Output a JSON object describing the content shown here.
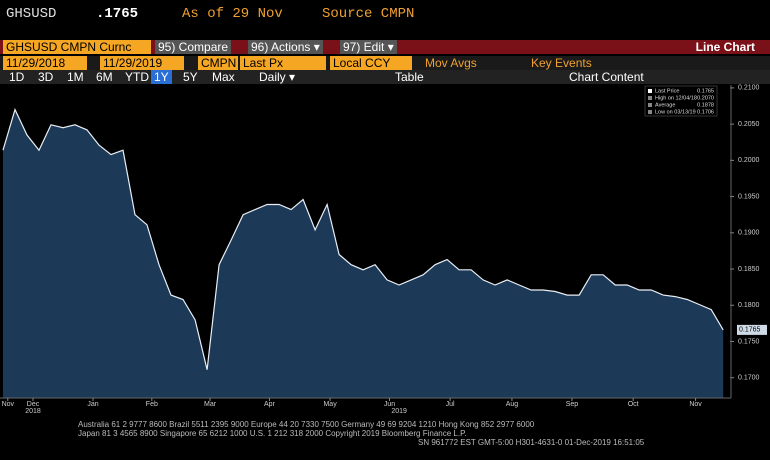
{
  "header": {
    "ticker": "GHSUSD",
    "price": ".1765",
    "as_of": "As of 29 Nov",
    "source": "Source CMPN"
  },
  "toolbar": {
    "security": "GHSUSD CMPN Curnc",
    "compare": "95) Compare",
    "actions": "96) Actions ▾",
    "edit": "97) Edit ▾",
    "view": "Line Chart",
    "start_date": "11/29/2018",
    "end_date": "11/29/2019",
    "pricing_source": "CMPN",
    "field": "Last Px",
    "currency": "Local CCY",
    "mov_avgs": "Mov Avgs",
    "key_events": "Key Events",
    "ranges": [
      "1D",
      "3D",
      "1M",
      "6M",
      "YTD",
      "1Y",
      "5Y",
      "Max"
    ],
    "active_range": 5,
    "frequency": "Daily ▾",
    "table": "Table",
    "chart_content": "Chart Content"
  },
  "chart": {
    "type": "area",
    "color": "#e8eef5",
    "fill": "#1c3957",
    "values": [
      0.2014,
      0.207,
      0.2035,
      0.2014,
      0.2049,
      0.2045,
      0.2049,
      0.2042,
      0.2021,
      0.2008,
      0.2014,
      0.1925,
      0.1911,
      0.1856,
      0.1814,
      0.1808,
      0.178,
      0.1711,
      0.1856,
      0.189,
      0.1925,
      0.1932,
      0.1939,
      0.1939,
      0.1932,
      0.1946,
      0.1904,
      0.1939,
      0.187,
      0.1856,
      0.1849,
      0.1856,
      0.1835,
      0.1828,
      0.1835,
      0.1842,
      0.1856,
      0.1863,
      0.1849,
      0.1849,
      0.1835,
      0.1828,
      0.1835,
      0.1828,
      0.1821,
      0.1821,
      0.1819,
      0.1814,
      0.1814,
      0.1842,
      0.1842,
      0.1828,
      0.1828,
      0.1821,
      0.1821,
      0.1814,
      0.1812,
      0.1808,
      0.1801,
      0.1794,
      0.1766
    ],
    "xlim": [
      0,
      60.4
    ],
    "xticks": [
      {
        "value": 0.4,
        "label": "Nov"
      },
      {
        "value": 2.5,
        "label": "Dec"
      },
      {
        "value": 7.5,
        "label": "Jan"
      },
      {
        "value": 12.4,
        "label": "Feb"
      },
      {
        "value": 17.25,
        "label": "Mar"
      },
      {
        "value": 22.2,
        "label": "Apr"
      },
      {
        "value": 27.25,
        "label": "May"
      },
      {
        "value": 32.2,
        "label": "Jun"
      },
      {
        "value": 37.25,
        "label": "Jul"
      },
      {
        "value": 42.4,
        "label": "Aug"
      },
      {
        "value": 47.4,
        "label": "Sep"
      },
      {
        "value": 52.5,
        "label": "Oct"
      },
      {
        "value": 57.7,
        "label": "Nov"
      }
    ],
    "year_ticks": [
      {
        "value": 2.5,
        "label": "2018"
      },
      {
        "value": 33.0,
        "label": "2019"
      }
    ],
    "ylim": [
      0.1672,
      0.2104
    ],
    "yticks": [
      {
        "value": 0.17,
        "label": "0.1700"
      },
      {
        "value": 0.175,
        "label": "0.1750"
      },
      {
        "value": 0.18,
        "label": "0.1800"
      },
      {
        "value": 0.185,
        "label": "0.1850"
      },
      {
        "value": 0.19,
        "label": "0.1900"
      },
      {
        "value": 0.195,
        "label": "0.1950"
      },
      {
        "value": 0.2,
        "label": "0.2000"
      },
      {
        "value": 0.205,
        "label": "0.2050"
      },
      {
        "value": 0.21,
        "label": "0.2100"
      }
    ],
    "legend": [
      {
        "label": "Last Price",
        "value": "0.1765"
      },
      {
        "label": "High on 12/04/18",
        "value": "0.2070"
      },
      {
        "label": "Average",
        "value": "0.1878"
      },
      {
        "label": "Low on 03/13/19",
        "value": "0.1706"
      }
    ]
  },
  "footer": [
    "Australia 61 2 9777 8600 Brazil 5511 2395 9000 Europe 44 20 7330 7500 Germany 49 69 9204 1210 Hong Kong 852 2977 6000",
    "Japan 81 3 4565 8900 Singapore 65 6212 1000 U.S. 1 212 318 2000 Copyright 2019 Bloomberg Finance L.P.",
    "SN 961772 EST GMT-5:00 H301-4631-0 01-Dec-2019 16:51:05"
  ]
}
